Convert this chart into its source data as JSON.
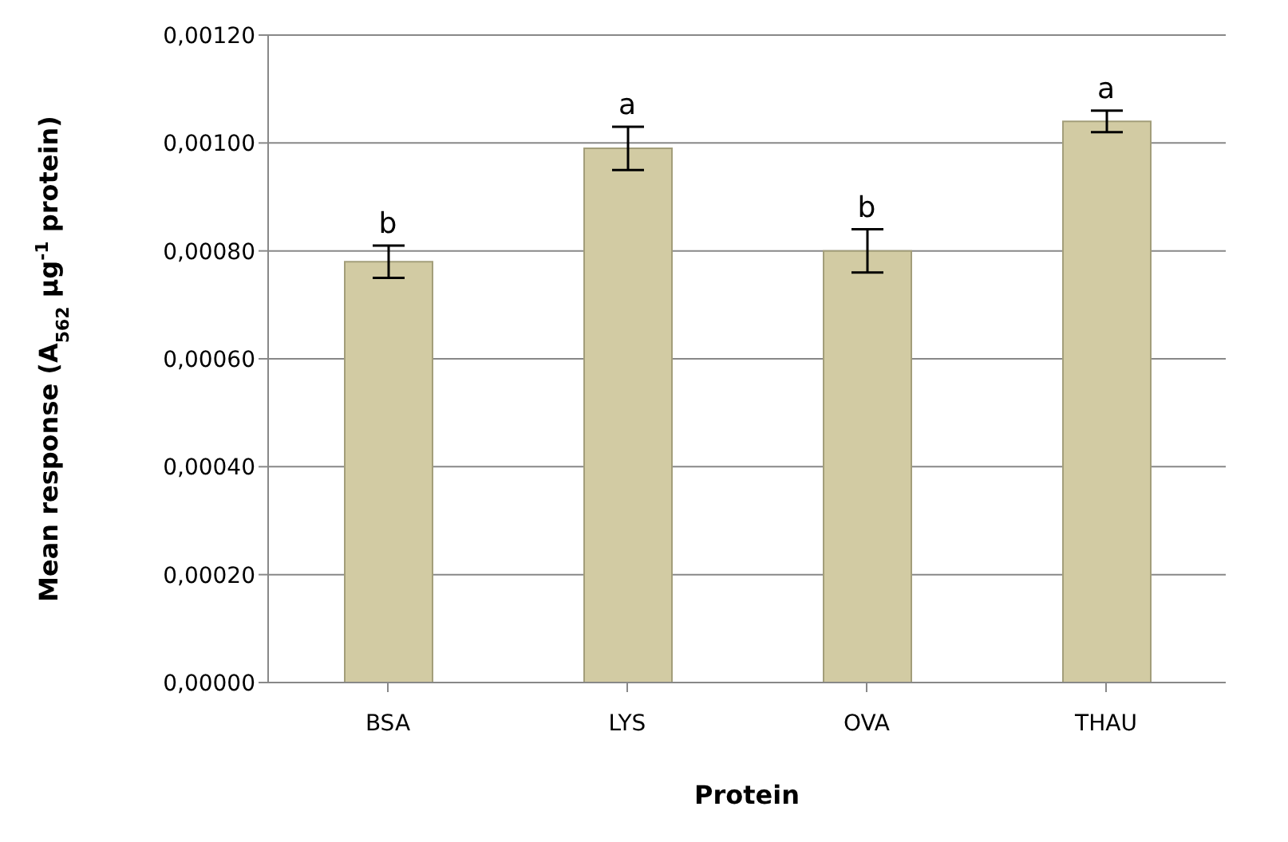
{
  "chart_data": {
    "type": "bar",
    "xlabel": "Protein",
    "ylabel": "Mean response (A$_{562}$ µg$^{-1}$ protein)",
    "categories": [
      "BSA",
      "LYS",
      "OVA",
      "THAU"
    ],
    "values": [
      0.00078,
      0.00099,
      0.0008,
      0.00104
    ],
    "errors": [
      3e-05,
      4e-05,
      4e-05,
      2e-05
    ],
    "color": "#d2cba3",
    "ylim": [
      0,
      0.0012
    ],
    "yticks": [
      {
        "value": 0,
        "label": "0,00000"
      },
      {
        "value": 0.0002,
        "label": "0,00020"
      },
      {
        "value": 0.0004,
        "label": "0,00040"
      },
      {
        "value": 0.0006,
        "label": "0,00060"
      },
      {
        "value": 0.0008,
        "label": "0,00080"
      },
      {
        "value": 0.001,
        "label": "0,00100"
      },
      {
        "value": 0.0012,
        "label": "0,00120"
      }
    ],
    "grid": "y",
    "annotations": [
      {
        "text": "b",
        "x": "BSA",
        "y": 0.00081
      },
      {
        "text": "a",
        "x": "LYS",
        "y": 0.00103
      },
      {
        "text": "b",
        "x": "OVA",
        "y": 0.00084
      },
      {
        "text": "a",
        "x": "THAU",
        "y": 0.00106
      }
    ]
  }
}
